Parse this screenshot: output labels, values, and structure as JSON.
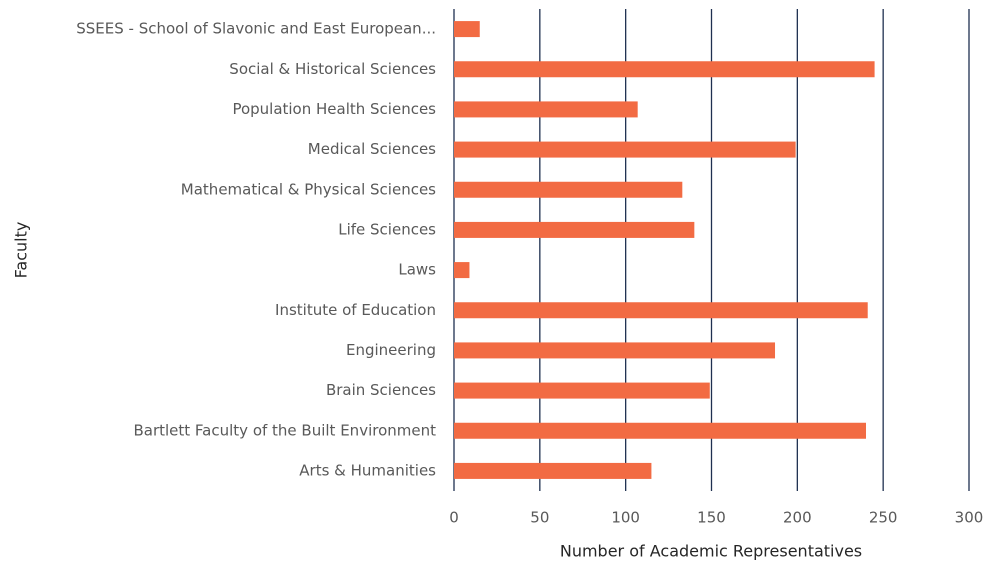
{
  "chart_data": {
    "type": "barh",
    "categories": [
      "SSEES - School of Slavonic and East European...",
      "Social & Historical Sciences",
      "Population Health Sciences",
      "Medical Sciences",
      "Mathematical & Physical Sciences",
      "Life Sciences",
      "Laws",
      "Institute of Education",
      "Engineering",
      "Brain Sciences",
      "Bartlett Faculty of the Built Environment",
      "Arts & Humanities"
    ],
    "values": [
      15,
      245,
      107,
      199,
      133,
      140,
      9,
      241,
      187,
      149,
      240,
      115
    ],
    "color": "#f26b43",
    "xlabel": "Number of Academic Representatives",
    "ylabel": "Faculty",
    "xlim": [
      0,
      300
    ],
    "xticks": [
      0,
      50,
      100,
      150,
      200,
      250,
      300
    ],
    "grid": true,
    "grid_color": "#1f3050"
  }
}
